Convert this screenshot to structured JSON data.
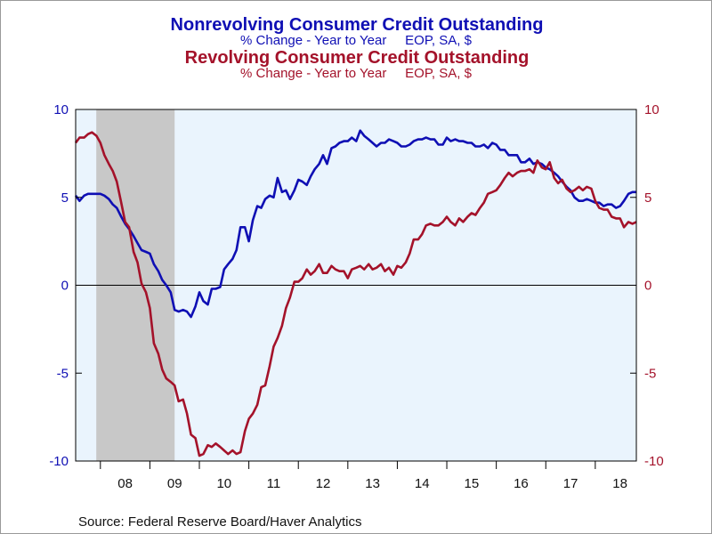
{
  "source": "Source:  Federal Reserve Board/Haver Analytics",
  "colors": {
    "blue": "#0f0fb4",
    "red": "#a4122a",
    "plot_bg": "#eaf4fd",
    "recession": "#c8c8c8"
  },
  "chart_data": {
    "type": "line",
    "titles": [
      {
        "title": "Nonrevolving Consumer Credit Outstanding",
        "subtitle": "% Change - Year to Year     EOP, SA, $",
        "color": "#0f0fb4"
      },
      {
        "title": "Revolving Consumer Credit Outstanding",
        "subtitle": "% Change - Year to Year     EOP, SA, $",
        "color": "#a4122a"
      }
    ],
    "xlim": [
      2007.5,
      2018.83
    ],
    "ylim": [
      -10,
      10
    ],
    "y_ticks": [
      "10",
      "5",
      "0",
      "-5",
      "-10"
    ],
    "y_tick_values": [
      10,
      5,
      0,
      -5,
      -10
    ],
    "x_ticks": [
      "08",
      "09",
      "10",
      "11",
      "12",
      "13",
      "14",
      "15",
      "16",
      "17",
      "18"
    ],
    "x_tick_values": [
      2008,
      2009,
      2010,
      2011,
      2012,
      2013,
      2014,
      2015,
      2016,
      2017,
      2018
    ],
    "recession": [
      2007.917,
      2009.5
    ],
    "zero_line": true,
    "grid": false,
    "series": [
      {
        "color": "#0f0fb4",
        "points": [
          [
            2007.5,
            5.1
          ],
          [
            2007.58,
            4.8
          ],
          [
            2007.67,
            5.1
          ],
          [
            2007.75,
            5.2
          ],
          [
            2007.83,
            5.2
          ],
          [
            2007.92,
            5.2
          ],
          [
            2008.0,
            5.2
          ],
          [
            2008.08,
            5.1
          ],
          [
            2008.17,
            4.9
          ],
          [
            2008.25,
            4.6
          ],
          [
            2008.33,
            4.4
          ],
          [
            2008.42,
            3.9
          ],
          [
            2008.5,
            3.5
          ],
          [
            2008.58,
            3.2
          ],
          [
            2008.67,
            2.8
          ],
          [
            2008.75,
            2.4
          ],
          [
            2008.83,
            2.0
          ],
          [
            2008.92,
            1.9
          ],
          [
            2009.0,
            1.8
          ],
          [
            2009.08,
            1.2
          ],
          [
            2009.17,
            0.8
          ],
          [
            2009.25,
            0.3
          ],
          [
            2009.33,
            0.0
          ],
          [
            2009.42,
            -0.4
          ],
          [
            2009.5,
            -1.4
          ],
          [
            2009.58,
            -1.5
          ],
          [
            2009.67,
            -1.4
          ],
          [
            2009.75,
            -1.5
          ],
          [
            2009.83,
            -1.8
          ],
          [
            2009.92,
            -1.2
          ],
          [
            2010.0,
            -0.4
          ],
          [
            2010.08,
            -0.9
          ],
          [
            2010.17,
            -1.1
          ],
          [
            2010.25,
            -0.2
          ],
          [
            2010.33,
            -0.2
          ],
          [
            2010.42,
            -0.1
          ],
          [
            2010.5,
            0.9
          ],
          [
            2010.58,
            1.2
          ],
          [
            2010.67,
            1.5
          ],
          [
            2010.75,
            2.0
          ],
          [
            2010.83,
            3.3
          ],
          [
            2010.92,
            3.3
          ],
          [
            2011.0,
            2.5
          ],
          [
            2011.08,
            3.7
          ],
          [
            2011.17,
            4.5
          ],
          [
            2011.25,
            4.4
          ],
          [
            2011.33,
            4.9
          ],
          [
            2011.42,
            5.1
          ],
          [
            2011.5,
            5.0
          ],
          [
            2011.58,
            6.1
          ],
          [
            2011.67,
            5.3
          ],
          [
            2011.75,
            5.4
          ],
          [
            2011.83,
            4.9
          ],
          [
            2011.92,
            5.4
          ],
          [
            2012.0,
            6.0
          ],
          [
            2012.08,
            5.9
          ],
          [
            2012.17,
            5.7
          ],
          [
            2012.25,
            6.2
          ],
          [
            2012.33,
            6.6
          ],
          [
            2012.42,
            6.9
          ],
          [
            2012.5,
            7.4
          ],
          [
            2012.58,
            6.9
          ],
          [
            2012.67,
            7.8
          ],
          [
            2012.75,
            7.9
          ],
          [
            2012.83,
            8.1
          ],
          [
            2012.92,
            8.2
          ],
          [
            2013.0,
            8.2
          ],
          [
            2013.08,
            8.4
          ],
          [
            2013.17,
            8.2
          ],
          [
            2013.25,
            8.8
          ],
          [
            2013.33,
            8.5
          ],
          [
            2013.42,
            8.3
          ],
          [
            2013.5,
            8.1
          ],
          [
            2013.58,
            7.9
          ],
          [
            2013.67,
            8.1
          ],
          [
            2013.75,
            8.1
          ],
          [
            2013.83,
            8.3
          ],
          [
            2013.92,
            8.2
          ],
          [
            2014.0,
            8.1
          ],
          [
            2014.08,
            7.9
          ],
          [
            2014.17,
            7.9
          ],
          [
            2014.25,
            8.0
          ],
          [
            2014.33,
            8.2
          ],
          [
            2014.42,
            8.3
          ],
          [
            2014.5,
            8.3
          ],
          [
            2014.58,
            8.4
          ],
          [
            2014.67,
            8.3
          ],
          [
            2014.75,
            8.3
          ],
          [
            2014.83,
            8.0
          ],
          [
            2014.92,
            8.0
          ],
          [
            2015.0,
            8.4
          ],
          [
            2015.08,
            8.2
          ],
          [
            2015.17,
            8.3
          ],
          [
            2015.25,
            8.2
          ],
          [
            2015.33,
            8.2
          ],
          [
            2015.42,
            8.1
          ],
          [
            2015.5,
            8.1
          ],
          [
            2015.58,
            7.9
          ],
          [
            2015.67,
            7.9
          ],
          [
            2015.75,
            8.0
          ],
          [
            2015.83,
            7.8
          ],
          [
            2015.92,
            8.1
          ],
          [
            2016.0,
            8.0
          ],
          [
            2016.08,
            7.7
          ],
          [
            2016.17,
            7.7
          ],
          [
            2016.25,
            7.4
          ],
          [
            2016.33,
            7.4
          ],
          [
            2016.42,
            7.4
          ],
          [
            2016.5,
            7.0
          ],
          [
            2016.58,
            7.0
          ],
          [
            2016.67,
            7.2
          ],
          [
            2016.75,
            6.9
          ],
          [
            2016.83,
            7.0
          ],
          [
            2016.92,
            6.9
          ],
          [
            2017.0,
            6.7
          ],
          [
            2017.08,
            6.6
          ],
          [
            2017.17,
            6.4
          ],
          [
            2017.25,
            6.2
          ],
          [
            2017.33,
            5.9
          ],
          [
            2017.42,
            5.6
          ],
          [
            2017.5,
            5.4
          ],
          [
            2017.58,
            5.0
          ],
          [
            2017.67,
            4.8
          ],
          [
            2017.75,
            4.8
          ],
          [
            2017.83,
            4.9
          ],
          [
            2017.92,
            4.8
          ],
          [
            2018.0,
            4.7
          ],
          [
            2018.08,
            4.7
          ],
          [
            2018.17,
            4.5
          ],
          [
            2018.25,
            4.6
          ],
          [
            2018.33,
            4.6
          ],
          [
            2018.42,
            4.4
          ],
          [
            2018.5,
            4.5
          ],
          [
            2018.58,
            4.8
          ],
          [
            2018.67,
            5.2
          ],
          [
            2018.75,
            5.3
          ],
          [
            2018.83,
            5.3
          ]
        ]
      },
      {
        "color": "#a4122a",
        "points": [
          [
            2007.5,
            8.1
          ],
          [
            2007.58,
            8.4
          ],
          [
            2007.67,
            8.4
          ],
          [
            2007.75,
            8.6
          ],
          [
            2007.83,
            8.7
          ],
          [
            2007.92,
            8.5
          ],
          [
            2008.0,
            8.1
          ],
          [
            2008.08,
            7.4
          ],
          [
            2008.17,
            6.9
          ],
          [
            2008.25,
            6.5
          ],
          [
            2008.33,
            5.9
          ],
          [
            2008.42,
            4.7
          ],
          [
            2008.5,
            3.6
          ],
          [
            2008.58,
            3.3
          ],
          [
            2008.67,
            1.9
          ],
          [
            2008.75,
            1.3
          ],
          [
            2008.83,
            0.1
          ],
          [
            2008.92,
            -0.4
          ],
          [
            2009.0,
            -1.3
          ],
          [
            2009.08,
            -3.3
          ],
          [
            2009.17,
            -3.9
          ],
          [
            2009.25,
            -4.8
          ],
          [
            2009.33,
            -5.3
          ],
          [
            2009.42,
            -5.5
          ],
          [
            2009.5,
            -5.7
          ],
          [
            2009.58,
            -6.6
          ],
          [
            2009.67,
            -6.5
          ],
          [
            2009.75,
            -7.3
          ],
          [
            2009.83,
            -8.5
          ],
          [
            2009.92,
            -8.7
          ],
          [
            2010.0,
            -9.7
          ],
          [
            2010.08,
            -9.6
          ],
          [
            2010.17,
            -9.1
          ],
          [
            2010.25,
            -9.2
          ],
          [
            2010.33,
            -9.0
          ],
          [
            2010.42,
            -9.2
          ],
          [
            2010.5,
            -9.4
          ],
          [
            2010.58,
            -9.6
          ],
          [
            2010.67,
            -9.4
          ],
          [
            2010.75,
            -9.6
          ],
          [
            2010.83,
            -9.5
          ],
          [
            2010.92,
            -8.3
          ],
          [
            2011.0,
            -7.6
          ],
          [
            2011.08,
            -7.3
          ],
          [
            2011.17,
            -6.8
          ],
          [
            2011.25,
            -5.8
          ],
          [
            2011.33,
            -5.7
          ],
          [
            2011.42,
            -4.6
          ],
          [
            2011.5,
            -3.5
          ],
          [
            2011.58,
            -3.0
          ],
          [
            2011.67,
            -2.3
          ],
          [
            2011.75,
            -1.3
          ],
          [
            2011.83,
            -0.7
          ],
          [
            2011.92,
            0.2
          ],
          [
            2012.0,
            0.2
          ],
          [
            2012.08,
            0.4
          ],
          [
            2012.17,
            0.9
          ],
          [
            2012.25,
            0.6
          ],
          [
            2012.33,
            0.8
          ],
          [
            2012.42,
            1.2
          ],
          [
            2012.5,
            0.7
          ],
          [
            2012.58,
            0.7
          ],
          [
            2012.67,
            1.1
          ],
          [
            2012.75,
            0.9
          ],
          [
            2012.83,
            0.8
          ],
          [
            2012.92,
            0.8
          ],
          [
            2013.0,
            0.4
          ],
          [
            2013.08,
            0.9
          ],
          [
            2013.17,
            1.0
          ],
          [
            2013.25,
            1.1
          ],
          [
            2013.33,
            0.9
          ],
          [
            2013.42,
            1.2
          ],
          [
            2013.5,
            0.9
          ],
          [
            2013.58,
            1.0
          ],
          [
            2013.67,
            1.2
          ],
          [
            2013.75,
            0.8
          ],
          [
            2013.83,
            1.0
          ],
          [
            2013.92,
            0.6
          ],
          [
            2014.0,
            1.1
          ],
          [
            2014.08,
            1.0
          ],
          [
            2014.17,
            1.3
          ],
          [
            2014.25,
            1.8
          ],
          [
            2014.33,
            2.6
          ],
          [
            2014.42,
            2.6
          ],
          [
            2014.5,
            2.9
          ],
          [
            2014.58,
            3.4
          ],
          [
            2014.67,
            3.5
          ],
          [
            2014.75,
            3.4
          ],
          [
            2014.83,
            3.4
          ],
          [
            2014.92,
            3.6
          ],
          [
            2015.0,
            3.9
          ],
          [
            2015.08,
            3.6
          ],
          [
            2015.17,
            3.4
          ],
          [
            2015.25,
            3.8
          ],
          [
            2015.33,
            3.6
          ],
          [
            2015.42,
            3.9
          ],
          [
            2015.5,
            4.1
          ],
          [
            2015.58,
            4.0
          ],
          [
            2015.67,
            4.4
          ],
          [
            2015.75,
            4.7
          ],
          [
            2015.83,
            5.2
          ],
          [
            2015.92,
            5.3
          ],
          [
            2016.0,
            5.4
          ],
          [
            2016.08,
            5.7
          ],
          [
            2016.17,
            6.1
          ],
          [
            2016.25,
            6.4
          ],
          [
            2016.33,
            6.2
          ],
          [
            2016.42,
            6.4
          ],
          [
            2016.5,
            6.5
          ],
          [
            2016.58,
            6.5
          ],
          [
            2016.67,
            6.6
          ],
          [
            2016.75,
            6.4
          ],
          [
            2016.83,
            7.1
          ],
          [
            2016.92,
            6.7
          ],
          [
            2017.0,
            6.6
          ],
          [
            2017.08,
            7.0
          ],
          [
            2017.17,
            6.1
          ],
          [
            2017.25,
            5.8
          ],
          [
            2017.33,
            6.0
          ],
          [
            2017.42,
            5.5
          ],
          [
            2017.5,
            5.3
          ],
          [
            2017.58,
            5.4
          ],
          [
            2017.67,
            5.6
          ],
          [
            2017.75,
            5.4
          ],
          [
            2017.83,
            5.6
          ],
          [
            2017.92,
            5.5
          ],
          [
            2018.0,
            4.8
          ],
          [
            2018.08,
            4.4
          ],
          [
            2018.17,
            4.3
          ],
          [
            2018.25,
            4.3
          ],
          [
            2018.33,
            3.9
          ],
          [
            2018.42,
            3.8
          ],
          [
            2018.5,
            3.8
          ],
          [
            2018.58,
            3.3
          ],
          [
            2018.67,
            3.6
          ],
          [
            2018.75,
            3.5
          ],
          [
            2018.83,
            3.6
          ]
        ]
      }
    ]
  }
}
